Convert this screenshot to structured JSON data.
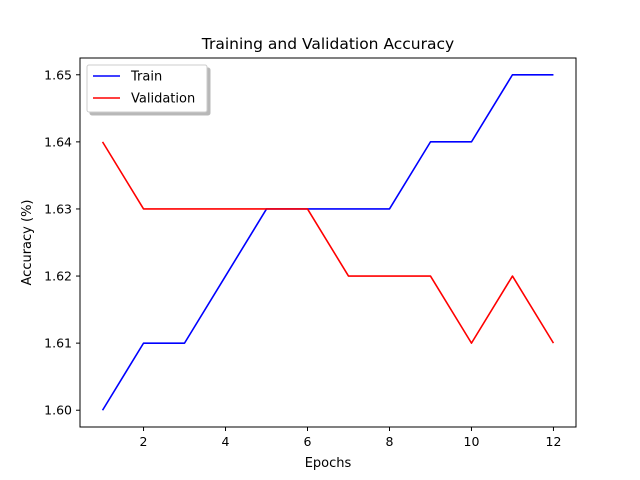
{
  "chart_data": {
    "type": "line",
    "title": "Training and Validation Accuracy",
    "xlabel": "Epochs",
    "ylabel": "Accuracy (%)",
    "x": [
      1,
      2,
      3,
      4,
      5,
      6,
      7,
      8,
      9,
      10,
      11,
      12
    ],
    "xlim": [
      0.45,
      12.55
    ],
    "ylim": [
      1.5975,
      1.6525
    ],
    "xticks": [
      2,
      4,
      6,
      8,
      10,
      12
    ],
    "xtick_labels": [
      "2",
      "4",
      "6",
      "8",
      "10",
      "12"
    ],
    "yticks": [
      1.6,
      1.61,
      1.62,
      1.63,
      1.64,
      1.65
    ],
    "ytick_labels": [
      "1.60",
      "1.61",
      "1.62",
      "1.63",
      "1.64",
      "1.65"
    ],
    "grid": false,
    "legend_position": "top-left",
    "series": [
      {
        "name": "Train",
        "color": "#0000ff",
        "values": [
          1.6,
          1.61,
          1.61,
          1.62,
          1.63,
          1.63,
          1.63,
          1.63,
          1.64,
          1.64,
          1.65,
          1.65
        ]
      },
      {
        "name": "Validation",
        "color": "#ff0000",
        "values": [
          1.64,
          1.63,
          1.63,
          1.63,
          1.63,
          1.63,
          1.62,
          1.62,
          1.62,
          1.61,
          1.62,
          1.61
        ]
      }
    ]
  }
}
